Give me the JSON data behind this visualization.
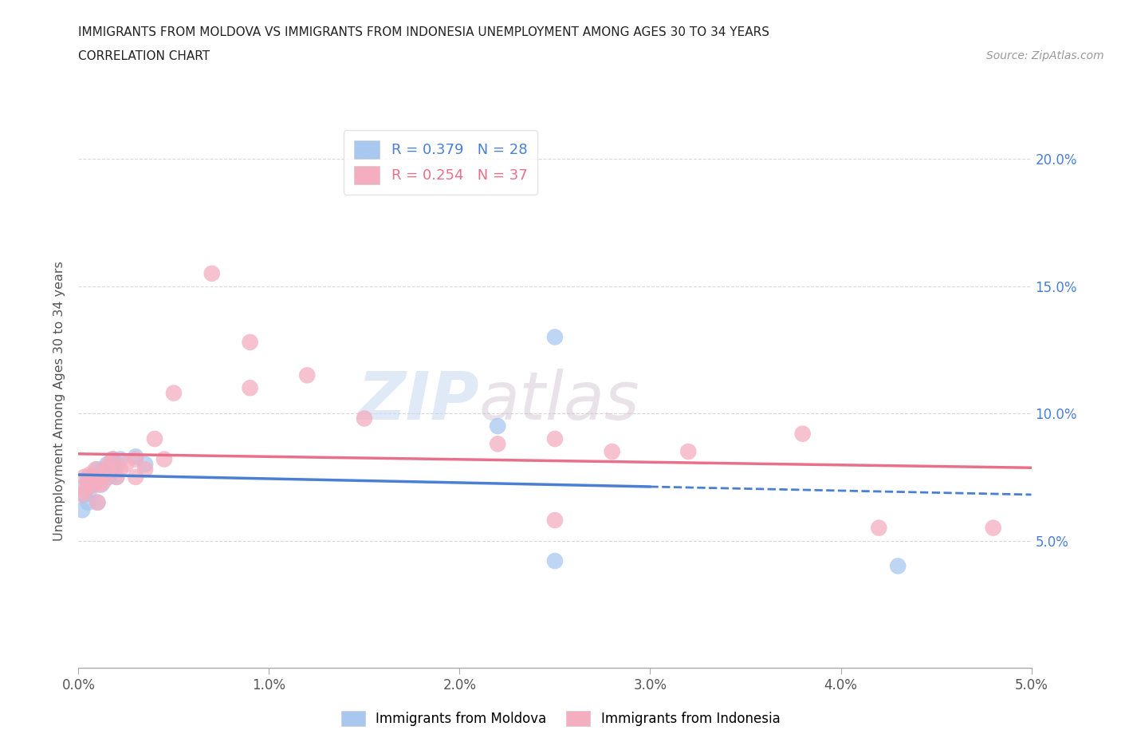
{
  "title_line1": "IMMIGRANTS FROM MOLDOVA VS IMMIGRANTS FROM INDONESIA UNEMPLOYMENT AMONG AGES 30 TO 34 YEARS",
  "title_line2": "CORRELATION CHART",
  "source_text": "Source: ZipAtlas.com",
  "ylabel": "Unemployment Among Ages 30 to 34 years",
  "xlim": [
    0.0,
    0.05
  ],
  "ylim": [
    0.0,
    0.21
  ],
  "xticks": [
    0.0,
    0.01,
    0.02,
    0.03,
    0.04,
    0.05
  ],
  "yticks": [
    0.05,
    0.1,
    0.15,
    0.2
  ],
  "ytick_labels": [
    "5.0%",
    "10.0%",
    "15.0%",
    "20.0%"
  ],
  "xtick_labels": [
    "0.0%",
    "1.0%",
    "2.0%",
    "3.0%",
    "4.0%",
    "5.0%"
  ],
  "moldova_color": "#a8c8f0",
  "moldova_line_color": "#4a7fd4",
  "indonesia_color": "#f5aec0",
  "indonesia_line_color": "#e8708a",
  "moldova_R": 0.379,
  "moldova_N": 28,
  "indonesia_R": 0.254,
  "indonesia_N": 37,
  "watermark_zip": "ZIP",
  "watermark_atlas": "atlas",
  "background_color": "#ffffff",
  "grid_color": "#d0d0d0",
  "moldova_x": [
    0.0002,
    0.0003,
    0.0004,
    0.0005,
    0.0005,
    0.0006,
    0.0007,
    0.0008,
    0.0009,
    0.001,
    0.001,
    0.0012,
    0.0013,
    0.0014,
    0.0015,
    0.0016,
    0.0017,
    0.0018,
    0.0019,
    0.002,
    0.002,
    0.0022,
    0.003,
    0.0035,
    0.022,
    0.025,
    0.043,
    0.025
  ],
  "moldova_y": [
    0.062,
    0.068,
    0.072,
    0.075,
    0.065,
    0.07,
    0.072,
    0.075,
    0.073,
    0.078,
    0.065,
    0.072,
    0.078,
    0.076,
    0.08,
    0.075,
    0.079,
    0.082,
    0.078,
    0.075,
    0.08,
    0.082,
    0.083,
    0.08,
    0.095,
    0.13,
    0.04,
    0.042
  ],
  "indonesia_x": [
    0.0002,
    0.0003,
    0.0004,
    0.0005,
    0.0006,
    0.0007,
    0.0008,
    0.0009,
    0.001,
    0.0011,
    0.0012,
    0.0013,
    0.0015,
    0.0016,
    0.0018,
    0.002,
    0.0022,
    0.0025,
    0.003,
    0.003,
    0.0035,
    0.004,
    0.0045,
    0.005,
    0.007,
    0.009,
    0.009,
    0.012,
    0.015,
    0.022,
    0.025,
    0.028,
    0.032,
    0.038,
    0.042,
    0.048,
    0.025
  ],
  "indonesia_y": [
    0.068,
    0.075,
    0.07,
    0.072,
    0.076,
    0.075,
    0.072,
    0.078,
    0.065,
    0.072,
    0.075,
    0.073,
    0.078,
    0.08,
    0.082,
    0.075,
    0.078,
    0.08,
    0.075,
    0.082,
    0.078,
    0.09,
    0.082,
    0.108,
    0.155,
    0.128,
    0.11,
    0.115,
    0.098,
    0.088,
    0.09,
    0.085,
    0.085,
    0.092,
    0.055,
    0.055,
    0.058
  ]
}
